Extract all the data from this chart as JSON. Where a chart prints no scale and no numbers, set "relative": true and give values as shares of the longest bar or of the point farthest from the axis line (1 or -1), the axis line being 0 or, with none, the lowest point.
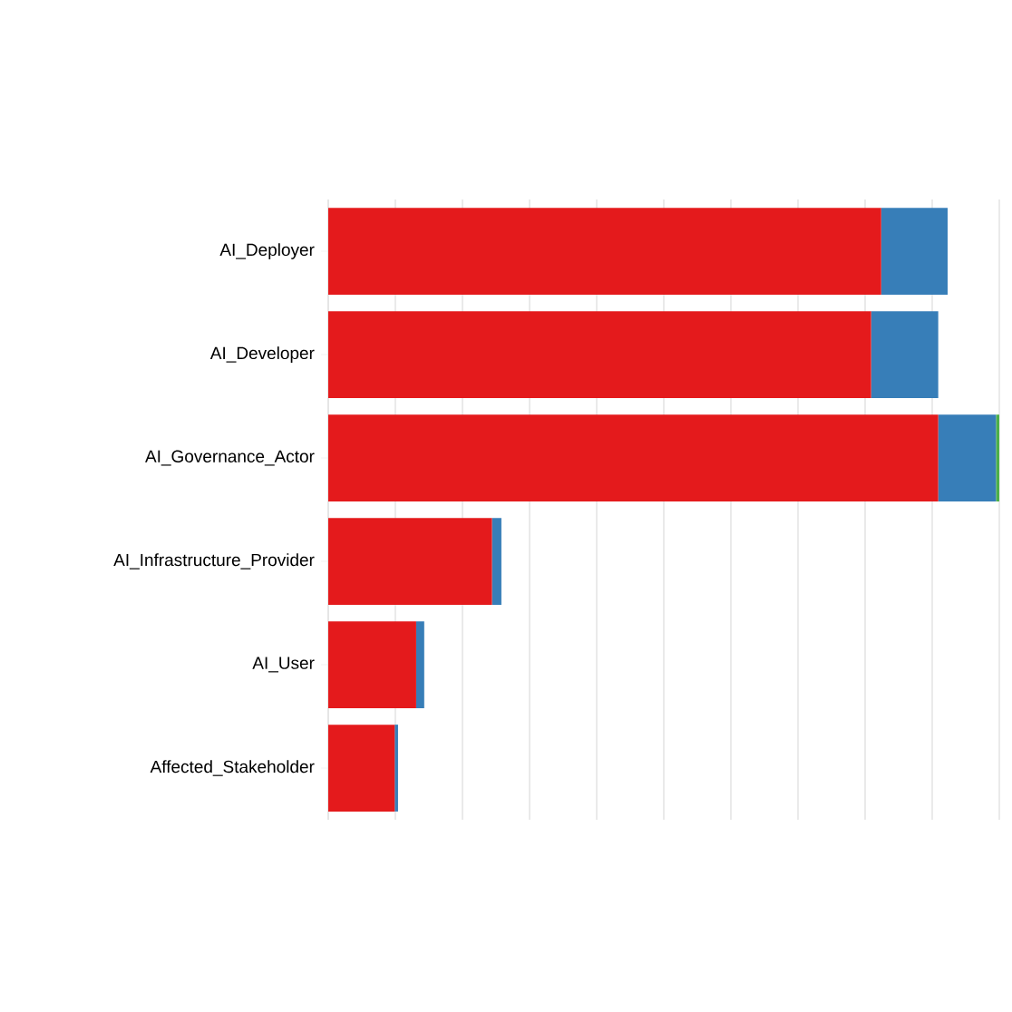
{
  "chart_data": {
    "type": "bar",
    "orientation": "horizontal",
    "stacked": true,
    "relative": true,
    "grid": "x",
    "categories": [
      "AI_Deployer",
      "AI_Developer",
      "AI_Governance_Actor",
      "AI_Infrastructure_Provider",
      "AI_User",
      "Affected_Stakeholder"
    ],
    "series": [
      {
        "color": "#e41a1c",
        "values": [
          0.824,
          0.809,
          0.909,
          0.244,
          0.131,
          0.099
        ]
      },
      {
        "color": "#377eb8",
        "values": [
          0.099,
          0.1,
          0.086,
          0.014,
          0.012,
          0.005
        ]
      },
      {
        "color": "#4daf4a",
        "values": [
          null,
          null,
          0.005,
          null,
          null,
          null
        ]
      }
    ]
  }
}
